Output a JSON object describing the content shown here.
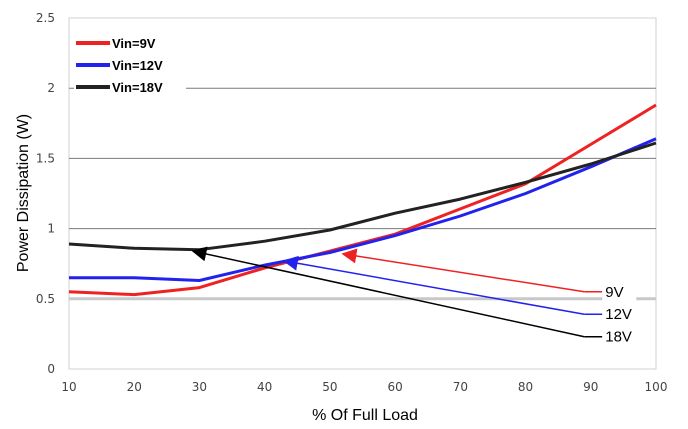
{
  "chart_data": {
    "type": "line",
    "xlabel": "% Of Full Load",
    "ylabel": "Power Dissipation (W)",
    "xlim": [
      10,
      100
    ],
    "ylim": [
      0,
      2.5
    ],
    "x_ticks": [
      "10",
      "20",
      "30",
      "40",
      "50",
      "60",
      "70",
      "80",
      "90",
      "100"
    ],
    "y_ticks": [
      "0",
      "0.5",
      "1",
      "1.5",
      "2",
      "2.5"
    ],
    "grid": "horizontal",
    "legend_position": "top-left",
    "series": [
      {
        "name": "Vin=9V",
        "color": "#ee2222",
        "x": [
          10,
          20,
          30,
          40,
          50,
          60,
          70,
          80,
          90,
          100
        ],
        "y": [
          0.55,
          0.53,
          0.58,
          0.72,
          0.84,
          0.96,
          1.14,
          1.32,
          1.6,
          1.88
        ]
      },
      {
        "name": "Vin=12V",
        "color": "#2222ee",
        "x": [
          10,
          20,
          30,
          40,
          50,
          60,
          70,
          80,
          90,
          100
        ],
        "y": [
          0.65,
          0.65,
          0.63,
          0.74,
          0.83,
          0.95,
          1.09,
          1.25,
          1.44,
          1.64
        ]
      },
      {
        "name": "Vin=18V",
        "color": "#222222",
        "x": [
          10,
          20,
          30,
          40,
          50,
          60,
          70,
          80,
          90,
          100
        ],
        "y": [
          0.89,
          0.86,
          0.85,
          0.91,
          0.99,
          1.11,
          1.21,
          1.33,
          1.46,
          1.61
        ]
      }
    ],
    "annotations": [
      {
        "text": "9V",
        "color": "#ee2222",
        "from": [
          89,
          0.55
        ],
        "to": [
          52,
          0.82
        ]
      },
      {
        "text": "12V",
        "color": "#2222ee",
        "from": [
          89,
          0.39
        ],
        "to": [
          43,
          0.77
        ]
      },
      {
        "text": "18V",
        "color": "#000000",
        "from": [
          89,
          0.23
        ],
        "to": [
          29,
          0.84
        ]
      }
    ]
  }
}
